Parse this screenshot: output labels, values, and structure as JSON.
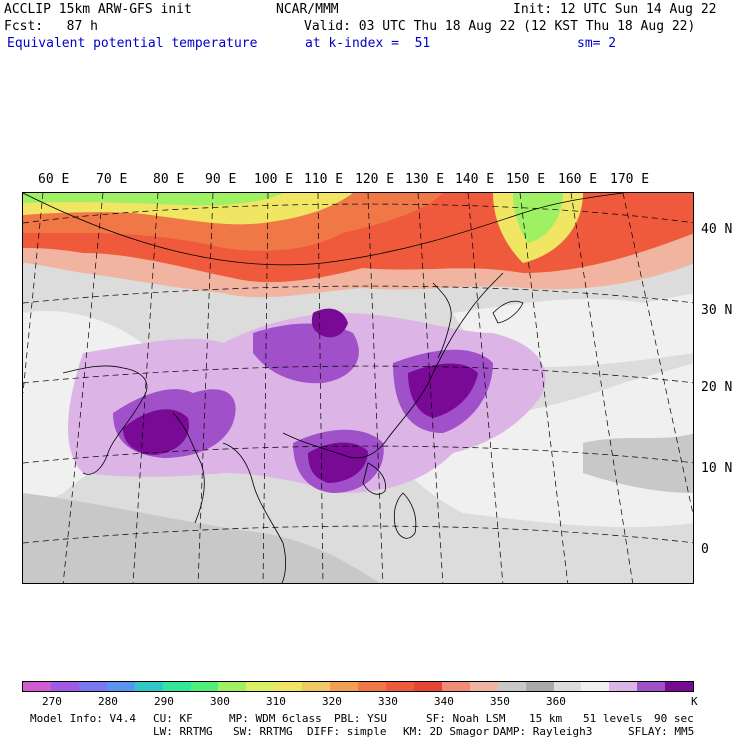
{
  "header": {
    "model": "ACCLIP 15km ARW-GFS init",
    "center": "NCAR/MMM",
    "init": "Init: 12 UTC Sun 14 Aug 22",
    "fcst": "Fcst:   87 h",
    "valid": "Valid: 03 UTC Thu 18 Aug 22 (12 KST Thu 18 Aug 22)",
    "field": "Equivalent potential temperature",
    "level": "at k-index =  51",
    "smooth": "sm= 2"
  },
  "longitude_labels": [
    "60 E",
    "70 E",
    "80 E",
    "90 E",
    "100 E",
    "110 E",
    "120 E",
    "130 E",
    "140 E",
    "150 E",
    "160 E",
    "170 E"
  ],
  "latitude_labels": [
    "40 N",
    "30 N",
    "20 N",
    "10 N",
    "0"
  ],
  "colorbar": {
    "unit": "K",
    "tick_labels": [
      "270",
      "280",
      "290",
      "300",
      "310",
      "320",
      "330",
      "340",
      "350",
      "360"
    ],
    "colors": [
      "#d25ad2",
      "#a05ae6",
      "#7878f0",
      "#5a96f0",
      "#32c8c8",
      "#32e69b",
      "#50f078",
      "#a0f064",
      "#dcf064",
      "#f0e664",
      "#f0c864",
      "#f0a050",
      "#f07846",
      "#f05a3c",
      "#e64632",
      "#f08c78",
      "#f0b4a0",
      "#c8c8c8",
      "#aaaaaa",
      "#dcdcdc",
      "#f0f0f0",
      "#dcb4e6",
      "#a050c8",
      "#780a96"
    ]
  },
  "footer": {
    "line1": [
      "Model Info: V4.4",
      "CU: KF",
      "MP: WDM 6class",
      "PBL: YSU",
      "SF: Noah LSM",
      "15 km",
      "51 levels",
      "90 sec"
    ],
    "line2": [
      "LW: RRTMG",
      "SW: RRTMG",
      "DIFF: simple",
      "KM: 2D Smagor",
      "DAMP: Rayleigh3",
      "SFLAY: MM5"
    ]
  },
  "map": {
    "field_colors": {
      "cold_purple_dark": "#780a96",
      "purple_mid": "#a050c8",
      "lilac": "#dcb4e6",
      "white": "#f0f0f0",
      "light_grey": "#dcdcdc",
      "grey": "#c8c8c8",
      "salmon": "#f08c78",
      "red": "#f05a3c",
      "orange": "#f07846",
      "yellow": "#f0e664",
      "light_green": "#a0f064"
    }
  }
}
